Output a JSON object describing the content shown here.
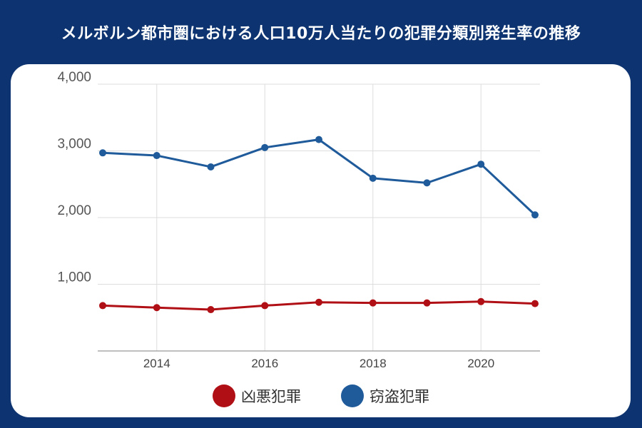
{
  "title": "メルボルン都市圏における人口10万人当たりの犯罪分類別発生率の推移",
  "colors": {
    "background": "#0d3470",
    "card": "#ffffff",
    "violent": "#b01015",
    "theft": "#1f5a9a",
    "grid": "#dddddd"
  },
  "chart_data": {
    "type": "line",
    "x": [
      2013,
      2014,
      2015,
      2016,
      2017,
      2018,
      2019,
      2020,
      2021
    ],
    "xticks": [
      "2014",
      "2016",
      "2018",
      "2020"
    ],
    "yticks": [
      "4,000",
      "3,000",
      "2,000",
      "1,000"
    ],
    "ylim": [
      0,
      4000
    ],
    "grid": true,
    "legend_position": "bottom",
    "series": [
      {
        "name": "凶悪犯罪",
        "color": "#b01015",
        "values": [
          680,
          650,
          620,
          680,
          730,
          720,
          720,
          740,
          710
        ]
      },
      {
        "name": "窃盗犯罪",
        "color": "#1f5a9a",
        "values": [
          2970,
          2930,
          2760,
          3050,
          3170,
          2590,
          2520,
          2800,
          2040
        ]
      }
    ]
  }
}
